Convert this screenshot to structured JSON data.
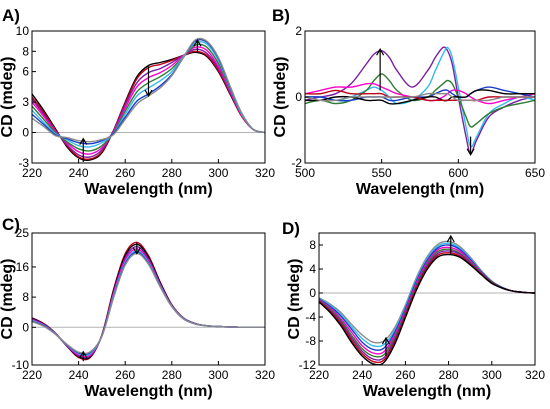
{
  "figure": {
    "panel_labels": [
      "A)",
      "B)",
      "C)",
      "D)"
    ]
  },
  "chart_data": [
    {
      "type": "line",
      "panel": "A)",
      "xlabel": "Wavelength (nm)",
      "ylabel": "CD (mdeg)",
      "xlim": [
        220,
        320
      ],
      "ylim": [
        -3,
        10
      ],
      "xticks": [
        220,
        240,
        260,
        280,
        300,
        320
      ],
      "yticks": [
        -3,
        0,
        3,
        6,
        8,
        10
      ],
      "grid": false,
      "zero_line": true,
      "arrows": [
        {
          "x": 242,
          "from": -2.9,
          "to": -0.6
        },
        {
          "x": 270,
          "from": 6.5,
          "to": 3.6
        },
        {
          "x": 291,
          "from": 7.9,
          "to": 9.1
        }
      ],
      "x": [
        220,
        225,
        230,
        235,
        240,
        245,
        250,
        255,
        260,
        265,
        270,
        275,
        280,
        285,
        290,
        295,
        300,
        305,
        310,
        315,
        320
      ],
      "series": [
        {
          "color": "#000000",
          "values": [
            3.8,
            2.2,
            0.4,
            -1.4,
            -2.5,
            -2.7,
            -2.0,
            0.2,
            3.0,
            5.5,
            6.6,
            6.9,
            7.2,
            7.6,
            7.9,
            7.5,
            6.0,
            3.8,
            1.6,
            0.3,
            0.0
          ]
        },
        {
          "color": "#c0001a",
          "values": [
            3.5,
            2.0,
            0.3,
            -1.3,
            -2.4,
            -2.6,
            -1.9,
            0.2,
            2.9,
            5.3,
            6.4,
            6.7,
            7.1,
            7.6,
            8.0,
            7.6,
            6.1,
            3.9,
            1.6,
            0.3,
            0.0
          ]
        },
        {
          "color": "#7b1fa2",
          "values": [
            3.3,
            1.8,
            0.2,
            -1.2,
            -2.2,
            -2.4,
            -1.7,
            0.2,
            2.7,
            4.9,
            5.9,
            6.3,
            6.9,
            7.6,
            8.2,
            7.8,
            6.3,
            4.0,
            1.7,
            0.3,
            0.0
          ]
        },
        {
          "color": "#ff00cc",
          "values": [
            3.0,
            1.6,
            0.1,
            -1.0,
            -1.9,
            -2.1,
            -1.5,
            0.1,
            2.4,
            4.5,
            5.4,
            5.9,
            6.6,
            7.6,
            8.4,
            8.1,
            6.5,
            4.1,
            1.7,
            0.3,
            0.0
          ]
        },
        {
          "color": "#2e7d32",
          "values": [
            2.6,
            1.3,
            0.0,
            -0.9,
            -1.6,
            -1.8,
            -1.3,
            0.0,
            2.1,
            4.0,
            4.9,
            5.5,
            6.3,
            7.5,
            8.6,
            8.4,
            6.8,
            4.3,
            1.8,
            0.3,
            0.0
          ]
        },
        {
          "color": "#33bbee",
          "values": [
            2.2,
            1.0,
            -0.1,
            -0.7,
            -1.3,
            -1.4,
            -1.0,
            -0.1,
            1.8,
            3.6,
            4.4,
            5.1,
            6.0,
            7.5,
            8.8,
            8.7,
            7.1,
            4.4,
            1.8,
            0.3,
            0.0
          ]
        },
        {
          "color": "#1a3ec8",
          "values": [
            1.8,
            0.8,
            -0.2,
            -0.6,
            -1.0,
            -1.1,
            -0.8,
            -0.1,
            1.5,
            3.1,
            3.8,
            4.6,
            5.7,
            7.4,
            9.0,
            8.9,
            7.3,
            4.5,
            1.9,
            0.3,
            0.0
          ]
        },
        {
          "color": "#8a8a8a",
          "values": [
            1.4,
            0.6,
            -0.3,
            -0.5,
            -0.8,
            -0.9,
            -0.7,
            -0.2,
            1.3,
            2.8,
            3.6,
            4.4,
            5.6,
            7.4,
            9.1,
            9.0,
            7.4,
            4.6,
            1.9,
            0.3,
            0.0
          ]
        }
      ]
    },
    {
      "type": "line",
      "panel": "B)",
      "xlabel": "Wavelength (nm)",
      "ylabel": "CD (mdeg)",
      "xlim": [
        500,
        650
      ],
      "ylim": [
        -2,
        2
      ],
      "xticks": [
        500,
        550,
        600,
        650
      ],
      "yticks": [
        -2,
        0,
        2
      ],
      "grid": false,
      "zero_line": false,
      "arrows": [
        {
          "x": 549,
          "from": 0.2,
          "to": 1.45
        },
        {
          "x": 608,
          "from": -1.2,
          "to": -1.75
        }
      ],
      "x": [
        500,
        510,
        520,
        530,
        540,
        545,
        550,
        555,
        560,
        570,
        580,
        585,
        590,
        593,
        596,
        600,
        605,
        608,
        612,
        620,
        630,
        640,
        650
      ],
      "series": [
        {
          "color": "#7b1fa2",
          "values": [
            -0.1,
            0.0,
            0.1,
            0.4,
            1.0,
            1.3,
            1.4,
            1.2,
            0.8,
            0.3,
            0.8,
            1.2,
            1.5,
            1.4,
            1.0,
            0.0,
            -1.2,
            -1.7,
            -1.3,
            -0.6,
            -0.3,
            -0.1,
            0.0
          ]
        },
        {
          "color": "#33bbee",
          "values": [
            0.0,
            0.0,
            -0.1,
            0.0,
            0.2,
            0.3,
            0.2,
            0.0,
            -0.2,
            -0.1,
            0.3,
            0.8,
            1.3,
            1.5,
            1.2,
            0.3,
            -0.9,
            -1.5,
            -1.2,
            -0.5,
            -0.2,
            0.0,
            -0.1
          ]
        },
        {
          "color": "#2e7d32",
          "values": [
            -0.2,
            -0.1,
            -0.2,
            -0.1,
            0.2,
            0.5,
            0.7,
            0.5,
            0.2,
            -0.1,
            0.0,
            0.2,
            0.4,
            0.5,
            0.4,
            0.0,
            -0.6,
            -0.9,
            -0.8,
            -0.5,
            -0.3,
            -0.2,
            -0.1
          ]
        },
        {
          "color": "#ff00cc",
          "values": [
            0.1,
            0.2,
            0.3,
            0.3,
            0.4,
            0.4,
            0.3,
            0.2,
            0.1,
            0.0,
            -0.1,
            -0.1,
            0.0,
            0.1,
            0.2,
            0.2,
            0.1,
            0.0,
            -0.1,
            -0.2,
            -0.1,
            0.0,
            0.1
          ]
        },
        {
          "color": "#1a3ec8",
          "values": [
            0.0,
            0.0,
            -0.1,
            -0.1,
            0.0,
            0.0,
            0.0,
            -0.1,
            -0.1,
            0.0,
            0.0,
            0.1,
            0.2,
            0.2,
            0.1,
            0.0,
            0.0,
            0.1,
            0.2,
            0.3,
            0.2,
            0.1,
            0.0
          ]
        },
        {
          "color": "#000000",
          "values": [
            -0.1,
            -0.1,
            0.0,
            0.0,
            -0.1,
            -0.1,
            -0.1,
            -0.2,
            -0.2,
            -0.1,
            0.0,
            0.0,
            -0.1,
            -0.1,
            0.0,
            0.0,
            0.0,
            0.1,
            0.2,
            0.2,
            0.1,
            0.1,
            0.1
          ]
        },
        {
          "color": "#c0001a",
          "values": [
            0.1,
            0.1,
            0.2,
            0.1,
            0.1,
            0.1,
            0.1,
            0.0,
            0.0,
            0.0,
            -0.1,
            -0.1,
            -0.1,
            -0.1,
            -0.1,
            -0.1,
            -0.1,
            -0.1,
            -0.1,
            0.0,
            0.0,
            0.0,
            0.0
          ]
        },
        {
          "color": "#8a8a8a",
          "values": [
            0.0,
            -0.1,
            -0.1,
            0.0,
            0.0,
            0.0,
            0.0,
            0.0,
            0.0,
            0.0,
            0.1,
            0.1,
            0.1,
            0.1,
            0.0,
            -0.1,
            -0.1,
            -0.1,
            -0.1,
            -0.1,
            0.0,
            0.0,
            0.0
          ]
        }
      ]
    },
    {
      "type": "line",
      "panel": "C)",
      "xlabel": "Wavelength (nm)",
      "ylabel": "CD (mdeg)",
      "xlim": [
        220,
        320
      ],
      "ylim": [
        -10,
        25
      ],
      "xticks": [
        220,
        240,
        260,
        280,
        300,
        320
      ],
      "yticks": [
        -10,
        0,
        8,
        16,
        25
      ],
      "grid": false,
      "zero_line": true,
      "arrows": [
        {
          "x": 242,
          "from": -9.0,
          "to": -6.5
        },
        {
          "x": 265,
          "from": 22.5,
          "to": 19.5
        }
      ],
      "x": [
        220,
        225,
        230,
        235,
        240,
        245,
        250,
        255,
        260,
        265,
        270,
        275,
        280,
        285,
        290,
        295,
        300,
        305,
        310,
        315,
        320
      ],
      "series": [
        {
          "color": "#c0001a",
          "values": [
            2.5,
            1.0,
            -1.5,
            -5.0,
            -8.0,
            -8.0,
            -2.0,
            10.0,
            19.5,
            22.5,
            19.0,
            12.0,
            6.0,
            2.5,
            1.0,
            0.4,
            0.2,
            0.1,
            0.0,
            0.0,
            0.0
          ]
        },
        {
          "color": "#000000",
          "values": [
            2.4,
            0.9,
            -1.6,
            -5.0,
            -7.8,
            -7.8,
            -2.1,
            9.6,
            19.0,
            22.0,
            18.6,
            11.8,
            5.9,
            2.4,
            1.0,
            0.4,
            0.2,
            0.1,
            0.0,
            0.0,
            0.0
          ]
        },
        {
          "color": "#7b1fa2",
          "values": [
            2.2,
            0.8,
            -1.6,
            -4.9,
            -7.6,
            -7.6,
            -2.2,
            9.2,
            18.4,
            21.4,
            18.1,
            11.5,
            5.8,
            2.4,
            1.0,
            0.4,
            0.2,
            0.1,
            0.0,
            0.0,
            0.0
          ]
        },
        {
          "color": "#ff00cc",
          "values": [
            2.0,
            0.6,
            -1.7,
            -4.8,
            -7.3,
            -7.3,
            -2.2,
            8.8,
            17.8,
            20.8,
            17.6,
            11.2,
            5.7,
            2.3,
            0.9,
            0.4,
            0.2,
            0.1,
            0.0,
            0.0,
            0.0
          ]
        },
        {
          "color": "#33bbee",
          "values": [
            1.8,
            0.5,
            -1.7,
            -4.7,
            -7.0,
            -7.0,
            -2.3,
            8.4,
            17.2,
            20.3,
            17.2,
            11.0,
            5.6,
            2.3,
            0.9,
            0.4,
            0.2,
            0.1,
            0.0,
            0.0,
            0.0
          ]
        },
        {
          "color": "#1a3ec8",
          "values": [
            1.6,
            0.4,
            -1.8,
            -4.6,
            -6.8,
            -6.7,
            -2.3,
            8.0,
            16.8,
            19.9,
            16.9,
            10.8,
            5.5,
            2.2,
            0.9,
            0.4,
            0.2,
            0.1,
            0.0,
            0.0,
            0.0
          ]
        },
        {
          "color": "#8a8a8a",
          "values": [
            1.5,
            0.3,
            -1.8,
            -4.5,
            -6.6,
            -6.5,
            -2.4,
            7.8,
            16.5,
            19.6,
            16.7,
            10.7,
            5.5,
            2.2,
            0.9,
            0.4,
            0.2,
            0.1,
            0.0,
            0.0,
            0.0
          ]
        }
      ]
    },
    {
      "type": "line",
      "panel": "D)",
      "xlabel": "Wavelength (nm)",
      "ylabel": "CD (mdeg)",
      "xlim": [
        220,
        320
      ],
      "ylim": [
        -12,
        10
      ],
      "xticks": [
        220,
        240,
        260,
        280,
        300,
        320
      ],
      "yticks": [
        -12,
        -8,
        -4,
        0,
        4,
        8
      ],
      "grid": false,
      "zero_line": true,
      "arrows": [
        {
          "x": 251,
          "from": -10.5,
          "to": -7.5
        },
        {
          "x": 281,
          "from": 6.5,
          "to": 9.5
        }
      ],
      "x": [
        220,
        225,
        230,
        235,
        240,
        245,
        250,
        255,
        260,
        265,
        270,
        275,
        280,
        285,
        290,
        295,
        300,
        305,
        310,
        315,
        320
      ],
      "series": [
        {
          "color": "#8a8a8a",
          "values": [
            -0.8,
            -1.8,
            -3.2,
            -5.2,
            -7.0,
            -8.2,
            -8.0,
            -5.8,
            -2.0,
            2.5,
            6.0,
            8.1,
            8.6,
            7.8,
            6.0,
            3.8,
            2.0,
            0.9,
            0.3,
            0.1,
            0.0
          ]
        },
        {
          "color": "#33bbee",
          "values": [
            -0.9,
            -2.0,
            -3.5,
            -5.6,
            -7.6,
            -8.8,
            -8.6,
            -6.2,
            -2.3,
            2.2,
            5.7,
            7.8,
            8.3,
            7.5,
            5.8,
            3.7,
            1.9,
            0.9,
            0.3,
            0.1,
            0.0
          ]
        },
        {
          "color": "#1a3ec8",
          "values": [
            -1.0,
            -2.2,
            -3.8,
            -6.0,
            -8.2,
            -9.4,
            -9.2,
            -6.6,
            -2.6,
            1.9,
            5.4,
            7.5,
            8.0,
            7.3,
            5.6,
            3.6,
            1.9,
            0.9,
            0.3,
            0.1,
            0.0
          ]
        },
        {
          "color": "#ff00cc",
          "values": [
            -1.1,
            -2.4,
            -4.2,
            -6.5,
            -8.8,
            -10.0,
            -9.8,
            -7.0,
            -2.9,
            1.6,
            5.1,
            7.2,
            7.6,
            7.0,
            5.4,
            3.5,
            1.8,
            0.8,
            0.3,
            0.1,
            0.0
          ]
        },
        {
          "color": "#2e7d32",
          "values": [
            -1.2,
            -2.6,
            -4.5,
            -7.0,
            -9.3,
            -10.5,
            -10.3,
            -7.4,
            -3.2,
            1.3,
            4.8,
            6.9,
            7.3,
            6.7,
            5.2,
            3.4,
            1.8,
            0.8,
            0.3,
            0.1,
            0.0
          ]
        },
        {
          "color": "#7b1fa2",
          "values": [
            -1.3,
            -2.8,
            -4.8,
            -7.4,
            -9.7,
            -11.0,
            -10.8,
            -7.8,
            -3.5,
            1.0,
            4.5,
            6.6,
            7.0,
            6.5,
            5.0,
            3.3,
            1.7,
            0.8,
            0.3,
            0.1,
            0.0
          ]
        },
        {
          "color": "#c0001a",
          "values": [
            -1.4,
            -3.0,
            -5.1,
            -7.8,
            -10.1,
            -11.4,
            -11.2,
            -8.2,
            -3.8,
            0.7,
            4.2,
            6.3,
            6.7,
            6.2,
            4.8,
            3.2,
            1.7,
            0.8,
            0.3,
            0.1,
            0.0
          ]
        },
        {
          "color": "#000000",
          "values": [
            -1.5,
            -3.2,
            -5.4,
            -8.2,
            -10.5,
            -11.8,
            -11.6,
            -8.6,
            -4.1,
            0.4,
            3.9,
            6.0,
            6.4,
            6.0,
            4.7,
            3.1,
            1.6,
            0.8,
            0.3,
            0.1,
            0.0
          ]
        }
      ]
    }
  ]
}
